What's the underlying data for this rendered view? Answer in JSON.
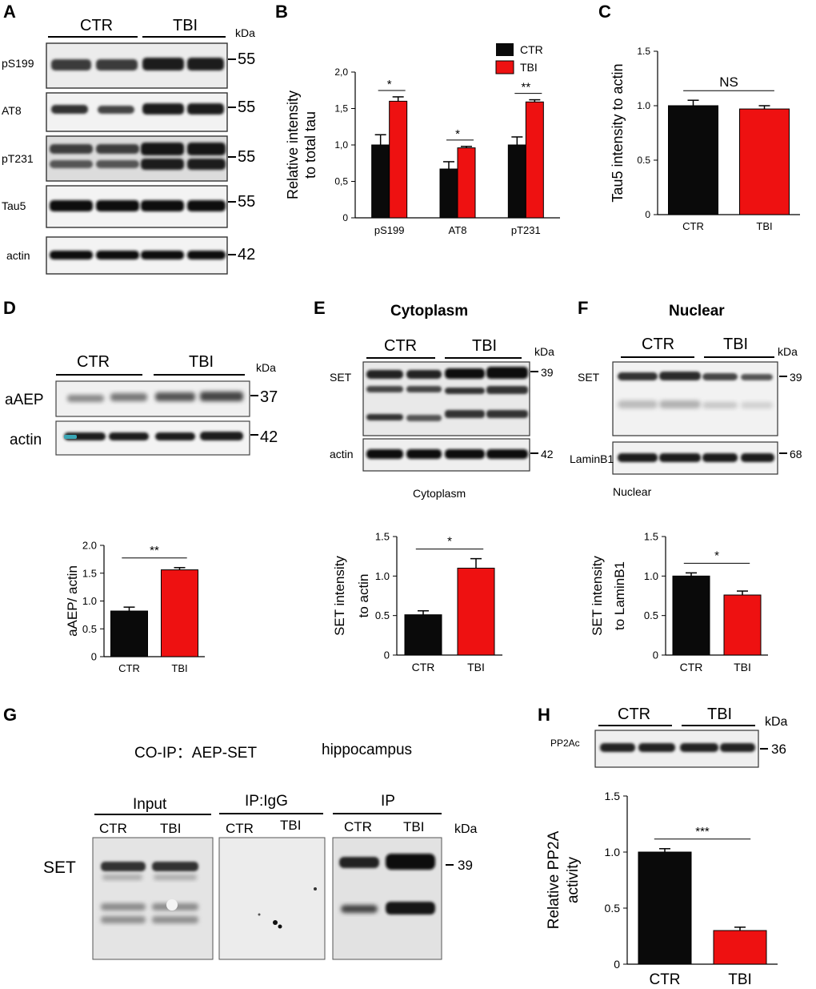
{
  "colors": {
    "ctr": "#0a0a0a",
    "tbi": "#ee1111"
  },
  "panel_labels": [
    "A",
    "B",
    "C",
    "D",
    "E",
    "F",
    "G",
    "H"
  ],
  "kda": "kDa",
  "ctr": "CTR",
  "tbi": "TBI",
  "panelA": {
    "rows": [
      {
        "label": "pS199",
        "marker": "55"
      },
      {
        "label": "AT8",
        "marker": "55"
      },
      {
        "label": "pT231",
        "marker": "55"
      },
      {
        "label": "Tau5",
        "marker": "55"
      },
      {
        "label": "actin",
        "marker": "42"
      }
    ]
  },
  "panelD": {
    "rows": [
      {
        "label": "aAEP",
        "marker": "37"
      },
      {
        "label": "actin",
        "marker": "42"
      }
    ]
  },
  "panelE": {
    "title": "Cytoplasm",
    "rows": [
      {
        "label": "SET",
        "marker": "39"
      },
      {
        "label": "actin",
        "marker": "42"
      }
    ],
    "caption": "Cytoplasm"
  },
  "panelF": {
    "title": "Nuclear",
    "rows": [
      {
        "label": "SET",
        "marker": "39"
      },
      {
        "label": "LaminB1",
        "marker": "68"
      }
    ],
    "caption": "Nuclear"
  },
  "panelG": {
    "title": "CO-IP：AEP-SET",
    "subtitle": "hippocampus",
    "groups": [
      "Input",
      "IP:IgG",
      "IP"
    ],
    "row_label": "SET",
    "marker": "39"
  },
  "panelH": {
    "row_label": "PP2Ac",
    "marker": "36"
  },
  "chart_data": [
    {
      "id": "B",
      "type": "bar",
      "categories": [
        "pS199",
        "AT8",
        "pT231"
      ],
      "series": [
        {
          "name": "CTR",
          "values": [
            1.0,
            0.67,
            1.0
          ],
          "errors": [
            0.14,
            0.1,
            0.11
          ]
        },
        {
          "name": "TBI",
          "values": [
            1.6,
            0.96,
            1.59
          ],
          "errors": [
            0.06,
            0.02,
            0.03
          ]
        }
      ],
      "ylabel": [
        "Relative intensity",
        "to total tau"
      ],
      "ylim": [
        0,
        2.0
      ],
      "yticks": [
        "0",
        "0,5",
        "1,0",
        "1,5",
        "2,0"
      ],
      "significance": [
        "*",
        "*",
        "**"
      ],
      "legend": "top-right"
    },
    {
      "id": "C",
      "type": "bar",
      "categories": [
        "CTR",
        "TBI"
      ],
      "values": [
        1.0,
        0.97
      ],
      "errors": [
        0.05,
        0.03
      ],
      "ylabel": [
        "Tau5 intensity to actin"
      ],
      "ylim": [
        0,
        1.5
      ],
      "yticks": [
        "0",
        "0.5",
        "1.0",
        "1.5"
      ],
      "significance": "NS"
    },
    {
      "id": "D",
      "type": "bar",
      "categories": [
        "CTR",
        "TBI"
      ],
      "values": [
        0.82,
        1.56
      ],
      "errors": [
        0.07,
        0.04
      ],
      "ylabel": [
        "aAEP/ actin"
      ],
      "ylim": [
        0,
        2.0
      ],
      "yticks": [
        "0",
        "0.5",
        "1.0",
        "1.5",
        "2.0"
      ],
      "significance": "**"
    },
    {
      "id": "E",
      "type": "bar",
      "categories": [
        "CTR",
        "TBI"
      ],
      "values": [
        0.51,
        1.1
      ],
      "errors": [
        0.05,
        0.12
      ],
      "ylabel": [
        "SET intensity",
        "to actin"
      ],
      "ylim": [
        0,
        1.5
      ],
      "yticks": [
        "0",
        "0.5",
        "1.0",
        "1.5"
      ],
      "significance": "*"
    },
    {
      "id": "F",
      "type": "bar",
      "categories": [
        "CTR",
        "TBI"
      ],
      "values": [
        1.0,
        0.76
      ],
      "errors": [
        0.04,
        0.05
      ],
      "ylabel": [
        "SET intensity",
        "to LaminB1"
      ],
      "ylim": [
        0,
        1.5
      ],
      "yticks": [
        "0",
        "0.5",
        "1.0",
        "1.5"
      ],
      "significance": "*"
    },
    {
      "id": "H",
      "type": "bar",
      "categories": [
        "CTR",
        "TBI"
      ],
      "values": [
        1.0,
        0.3
      ],
      "errors": [
        0.03,
        0.03
      ],
      "ylabel": [
        "Relative PP2A",
        "activity"
      ],
      "ylim": [
        0,
        1.5
      ],
      "yticks": [
        "0",
        "0.5",
        "1.0",
        "1.5"
      ],
      "significance": "***"
    }
  ]
}
